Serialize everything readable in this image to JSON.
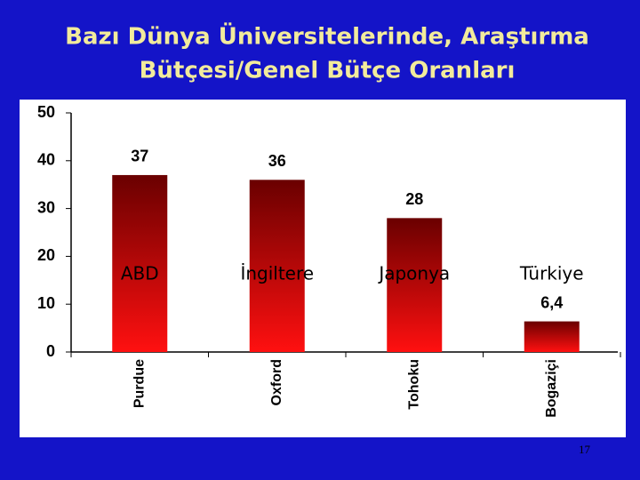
{
  "chart_data": {
    "type": "bar",
    "title": [
      "Bazı Dünya Üniversitelerinde, Araştırma",
      "Bütçesi/Genel Bütçe Oranları"
    ],
    "categories": [
      "Purdue",
      "Oxford",
      "Tohoku",
      "Bogaziçi"
    ],
    "country_labels": [
      "ABD",
      "İngiltere",
      "Japonya",
      "Türkiye"
    ],
    "values": [
      37,
      36,
      28,
      6.4
    ],
    "value_labels": [
      "37",
      "36",
      "28",
      "6,4"
    ],
    "ylim": [
      0,
      50
    ],
    "yticks": [
      0,
      10,
      20,
      30,
      40,
      50
    ]
  },
  "page_number": "17"
}
